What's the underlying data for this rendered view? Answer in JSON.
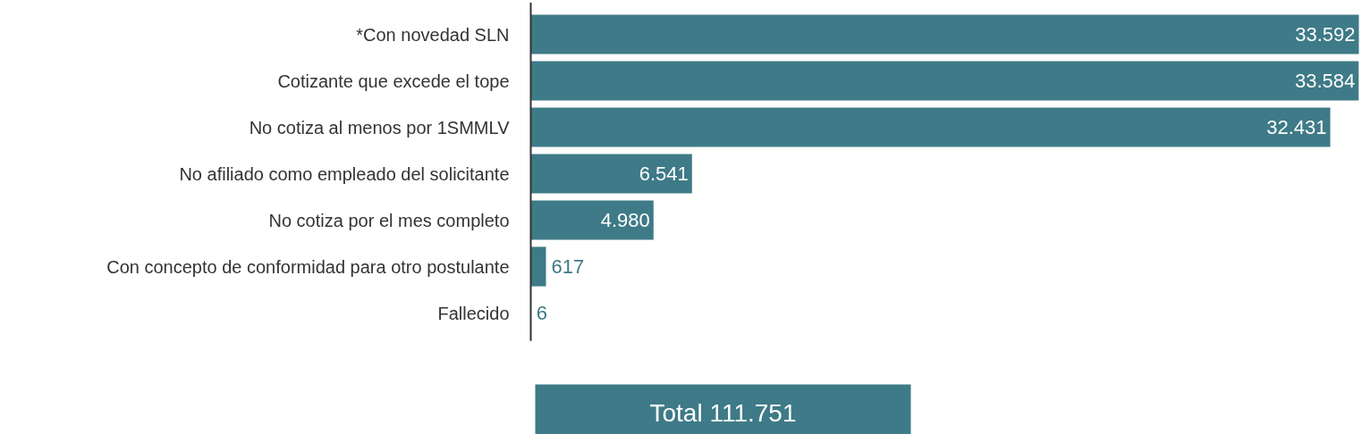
{
  "chart_data": {
    "type": "bar",
    "orientation": "horizontal",
    "categories": [
      "*Con novedad SLN",
      "Cotizante que excede el tope",
      "No cotiza al menos por 1SMMLV",
      "No afiliado como empleado del solicitante",
      "No cotiza por el mes completo",
      "Con concepto de conformidad para otro postulante",
      "Fallecido"
    ],
    "values": [
      33592,
      33584,
      32431,
      6541,
      4980,
      617,
      6
    ],
    "value_labels": [
      "33.592",
      "33.584",
      "32.431",
      "6.541",
      "4.980",
      "617",
      "6"
    ],
    "color": "#3e7a87",
    "grid": false,
    "annotations": [
      "Total 111.751"
    ]
  }
}
